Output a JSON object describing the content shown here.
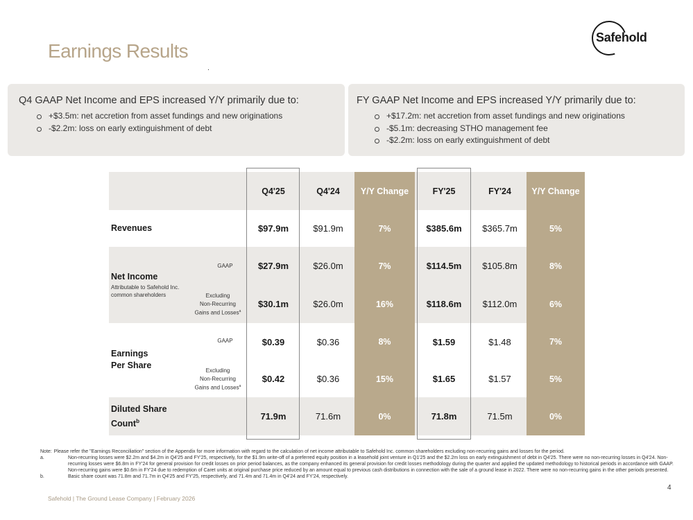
{
  "page": {
    "title": "Earnings Results",
    "logo_text": "Safehold",
    "page_number": "4",
    "footer": "Safehold | The Ground Lease Company | February 2026"
  },
  "boxes": {
    "q4": {
      "heading": "Q4 GAAP Net Income and EPS increased Y/Y primarily due to:",
      "items": [
        "+$3.5m: net accretion from asset fundings and new originations",
        "-$2.2m: loss on early extinguishment of debt"
      ]
    },
    "fy": {
      "heading": "FY GAAP Net Income and EPS increased Y/Y primarily due to:",
      "items": [
        "+$17.2m: net accretion from asset fundings and new originations",
        "-$5.1m: decreasing STHO management fee",
        "-$2.2m: loss on early extinguishment of debt"
      ]
    }
  },
  "table": {
    "columns": [
      "Q4'25",
      "Q4'24",
      "Y/Y Change",
      "FY'25",
      "FY'24",
      "Y/Y Change"
    ],
    "rows": {
      "revenues": {
        "label": "Revenues",
        "values": [
          "$97.9m",
          "$91.9m",
          "7%",
          "$385.6m",
          "$365.7m",
          "5%"
        ]
      },
      "net_income": {
        "label": "Net Income",
        "sub": "Attributable to Safehold Inc. common shareholders",
        "gaap_label": "GAAP",
        "gaap": [
          "$27.9m",
          "$26.0m",
          "7%",
          "$114.5m",
          "$105.8m",
          "8%"
        ],
        "excl_label_1": "Excluding",
        "excl_label_2": "Non-Recurring",
        "excl_label_3": "Gains and Losses",
        "excl_mark": "a",
        "excl": [
          "$30.1m",
          "$26.0m",
          "16%",
          "$118.6m",
          "$112.0m",
          "6%"
        ]
      },
      "eps": {
        "label_1": "Earnings",
        "label_2": "Per Share",
        "gaap_label": "GAAP",
        "gaap": [
          "$0.39",
          "$0.36",
          "8%",
          "$1.59",
          "$1.48",
          "7%"
        ],
        "excl_label_1": "Excluding",
        "excl_label_2": "Non-Recurring",
        "excl_label_3": "Gains and Losses",
        "excl_mark": "a",
        "excl": [
          "$0.42",
          "$0.36",
          "15%",
          "$1.65",
          "$1.57",
          "5%"
        ]
      },
      "shares": {
        "label_1": "Diluted Share",
        "label_2": "Count",
        "mark": "b",
        "values": [
          "71.9m",
          "71.6m",
          "0%",
          "71.8m",
          "71.5m",
          "0%"
        ]
      }
    }
  },
  "notes": {
    "note_label": "Note:",
    "note": "Please refer the \"Earnings Reconciliation\" section of the Appendix for more information with regard to the calculation of net income attributable to Safehold Inc. common shareholders excluding non-recurring gains and losses for the period.",
    "a_label": "a.",
    "a": "Non-recurring losses were $2.2m and $4.2m in Q4'25 and FY'25, respectively, for the $1.9m write-off of a preferred equity position in a leasehold joint venture in Q1'25 and the $2.2m loss on early extinguishment of debt in Q4'25. There were no non-recurring losses in Q4'24. Non-recurring losses were $6.8m in FY'24 for general provision for credit losses on prior period balances, as the company enhanced its general provision for credit losses methodology during the quarter and applied the updated methodology to historical periods in accordance with GAAP. Non-recurring gains were $0.6m in FY'24 due to redemption of Caret units at original purchase price reduced by an amount equal to previous cash distributions in connection with the sale of a ground lease in 2022. There were no non-recurring gains in the other periods presented.",
    "b_label": "b.",
    "b": "Basic share count was 71.8m and 71.7m in Q4'25 and FY'25, respectively, and 71.4m and 71.4m in Q4'24 and FY'24, respectively."
  },
  "colors": {
    "accent": "#b7a58a",
    "tan": "#b9a98c",
    "band": "#ebe9e6"
  }
}
